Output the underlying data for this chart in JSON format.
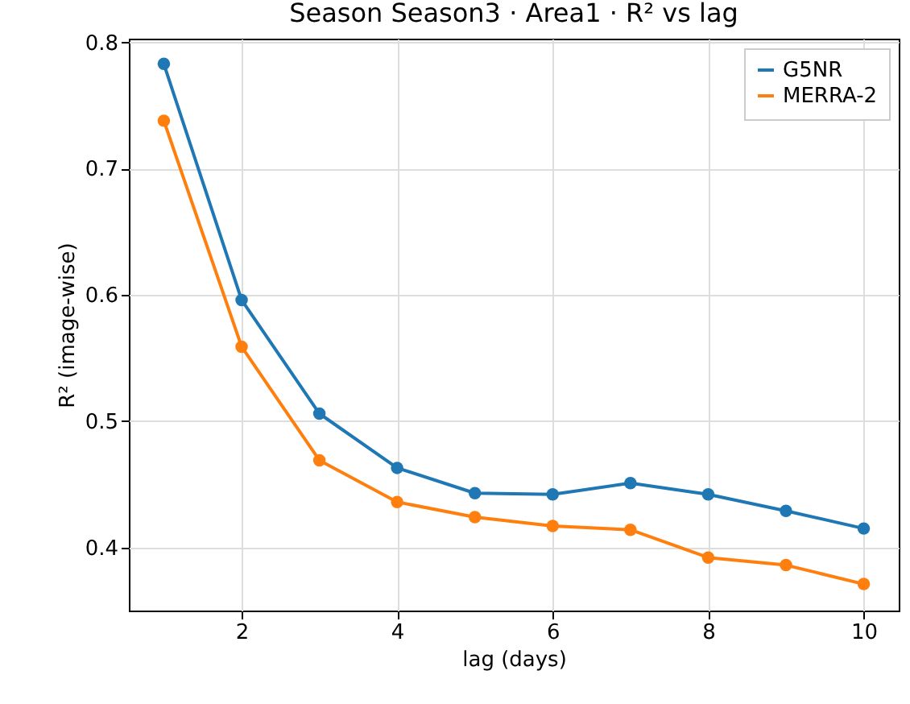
{
  "chart_data": {
    "type": "line",
    "title": "Season Season3 · Area1 · R² vs lag",
    "xlabel": "lag (days)",
    "ylabel": "R² (image-wise)",
    "x": [
      1,
      2,
      3,
      4,
      5,
      6,
      7,
      8,
      9,
      10
    ],
    "series": [
      {
        "name": "G5NR",
        "color": "#1f77b4",
        "values": [
          0.783,
          0.596,
          0.506,
          0.463,
          0.443,
          0.442,
          0.451,
          0.442,
          0.429,
          0.415
        ]
      },
      {
        "name": "MERRA-2",
        "color": "#ff7f0e",
        "values": [
          0.738,
          0.559,
          0.469,
          0.436,
          0.424,
          0.417,
          0.414,
          0.392,
          0.386,
          0.371
        ]
      }
    ],
    "xlim": [
      0.55,
      10.45
    ],
    "xticks": [
      2,
      4,
      6,
      8,
      10
    ],
    "ylim": [
      0.35,
      0.803
    ],
    "yticks": [
      0.4,
      0.5,
      0.6,
      0.7,
      0.8
    ],
    "grid": true,
    "legend": "top right",
    "marker": "circle",
    "line_style": "solid"
  }
}
